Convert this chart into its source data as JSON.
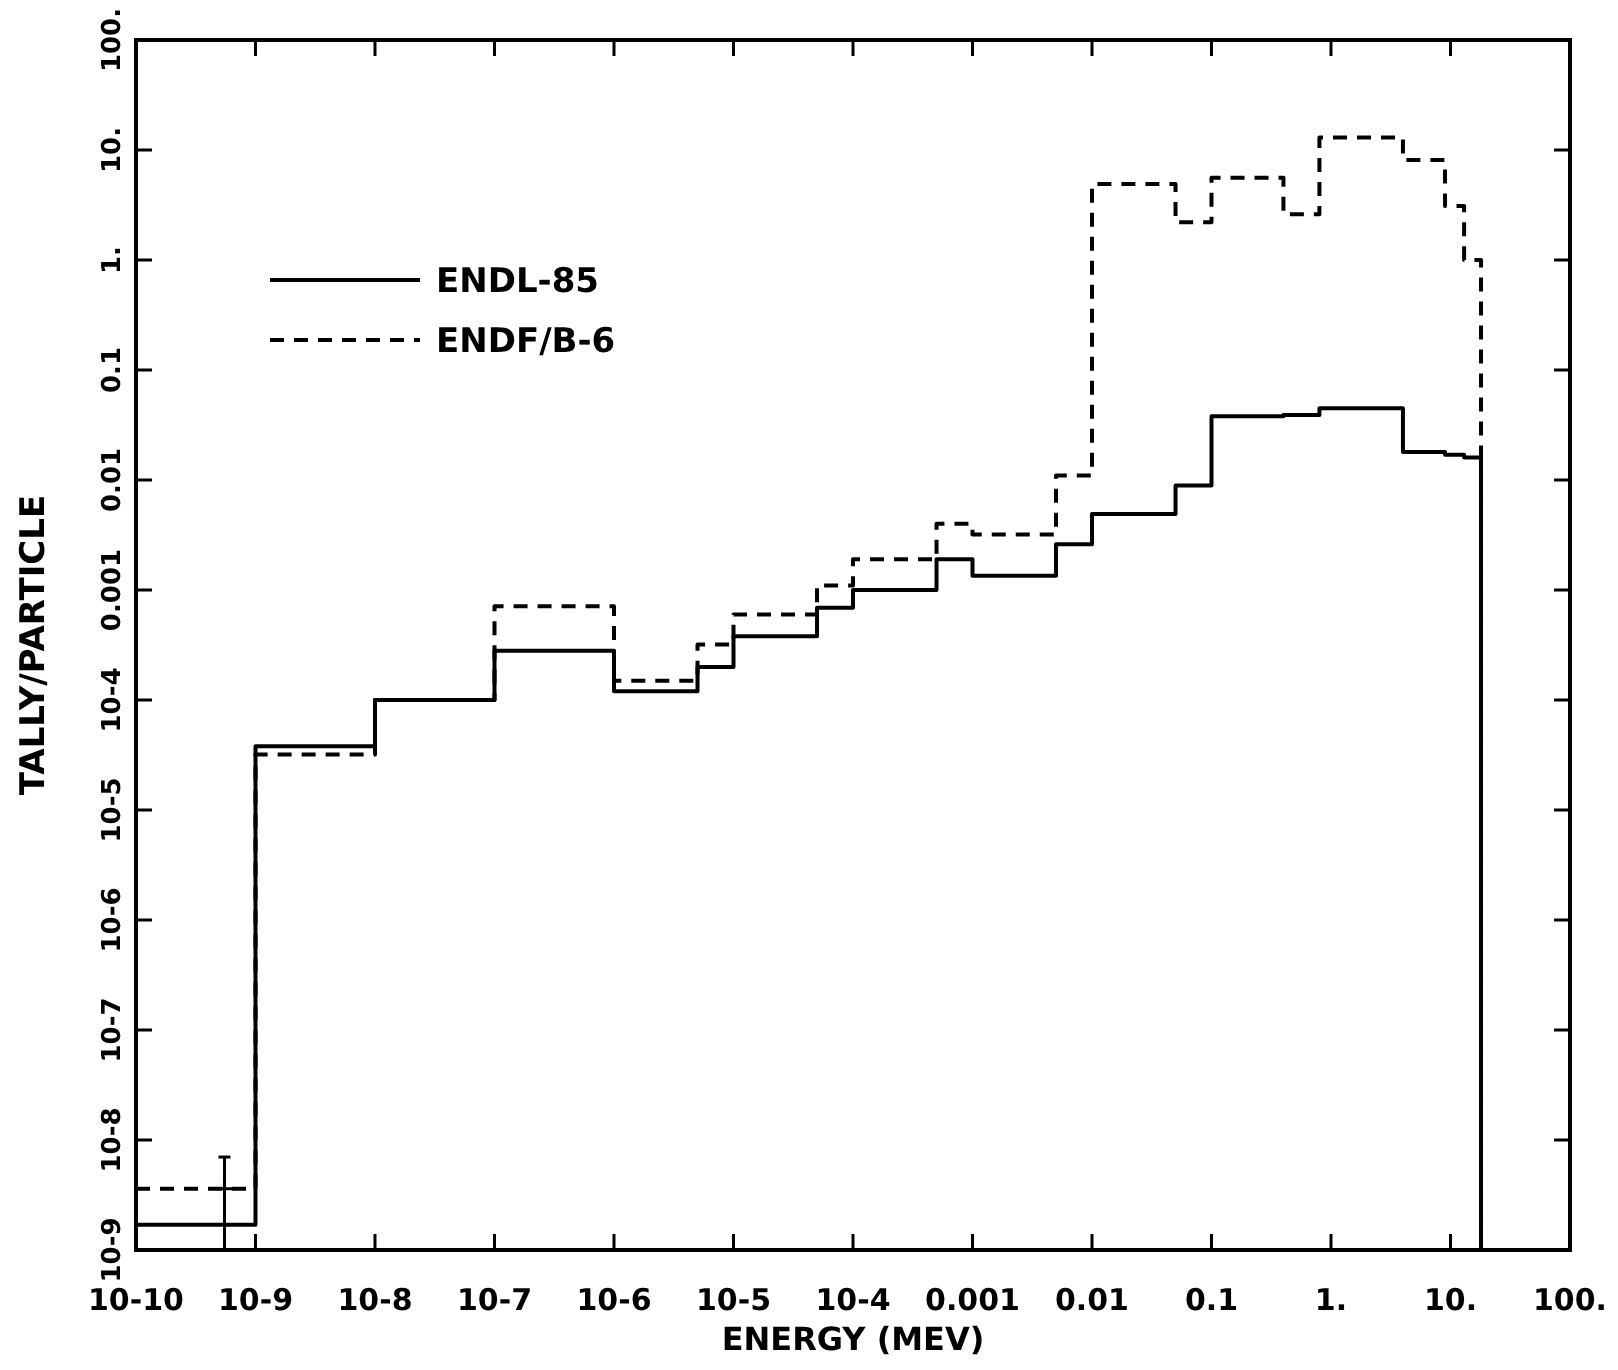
{
  "chart_data": {
    "type": "histogram",
    "xlabel": "ENERGY (MEV)",
    "ylabel": "TALLY/PARTICLE",
    "bins": [
      1e-10,
      1e-09,
      1e-08,
      1e-07,
      1e-06,
      5e-06,
      1e-05,
      5e-05,
      0.0001,
      0.0005,
      0.001,
      0.005,
      0.01,
      0.05,
      0.1,
      0.4,
      0.8,
      4,
      9,
      13,
      18
    ],
    "series": [
      {
        "name": "ENDL-85",
        "color": "#000000",
        "line_style": "solid",
        "values": [
          1.7e-09,
          3.8e-05,
          0.0001,
          0.00028,
          0.00012,
          0.0002,
          0.00038,
          0.00069,
          0.001,
          0.0019,
          0.00135,
          0.0026,
          0.0049,
          0.0089,
          0.038,
          0.039,
          0.045,
          0.018,
          0.017,
          0.016
        ]
      },
      {
        "name": "ENDF/B-6",
        "color": "#000000",
        "line_style": "dashed",
        "values": [
          3.6e-09,
          3.2e-05,
          0.0001,
          0.00071,
          0.00015,
          0.00032,
          0.0006,
          0.0011,
          0.0019,
          0.004,
          0.0032,
          0.011,
          4.9,
          2.2,
          5.6,
          2.6,
          13,
          8.1,
          3.1,
          1.0
        ]
      },
      {
        "type": "scatter",
        "color": "#000000",
        "marker": "cross",
        "x": [
          5.5e-10
        ],
        "values": [
          3.6e-09
        ],
        "errors": [
          [
            1e-09,
            7e-09
          ]
        ]
      }
    ],
    "log": "xy",
    "xlim": [
      1e-10,
      100
    ],
    "ylim": [
      1e-09,
      100
    ],
    "xticks": [
      {
        "value": 1e-10,
        "label": "10-10"
      },
      {
        "value": 1e-09,
        "label": "10-9"
      },
      {
        "value": 1e-08,
        "label": "10-8"
      },
      {
        "value": 1e-07,
        "label": "10-7"
      },
      {
        "value": 1e-06,
        "label": "10-6"
      },
      {
        "value": 1e-05,
        "label": "10-5"
      },
      {
        "value": 0.0001,
        "label": "10-4"
      },
      {
        "value": 0.001,
        "label": "0.001"
      },
      {
        "value": 0.01,
        "label": "0.01"
      },
      {
        "value": 0.1,
        "label": "0.1"
      },
      {
        "value": 1,
        "label": "1."
      },
      {
        "value": 10,
        "label": "10."
      },
      {
        "value": 100,
        "label": "100."
      }
    ],
    "yticks": [
      {
        "value": 1e-09,
        "label": "10-9"
      },
      {
        "value": 1e-08,
        "label": "10-8"
      },
      {
        "value": 1e-07,
        "label": "10-7"
      },
      {
        "value": 1e-06,
        "label": "10-6"
      },
      {
        "value": 1e-05,
        "label": "10-5"
      },
      {
        "value": 0.0001,
        "label": "10-4"
      },
      {
        "value": 0.001,
        "label": "0.001"
      },
      {
        "value": 0.01,
        "label": "0.01"
      },
      {
        "value": 0.1,
        "label": "0.1"
      },
      {
        "value": 1,
        "label": "1."
      },
      {
        "value": 10,
        "label": "10."
      },
      {
        "value": 100,
        "label": "100."
      }
    ],
    "legend": "top left",
    "grid": false
  }
}
